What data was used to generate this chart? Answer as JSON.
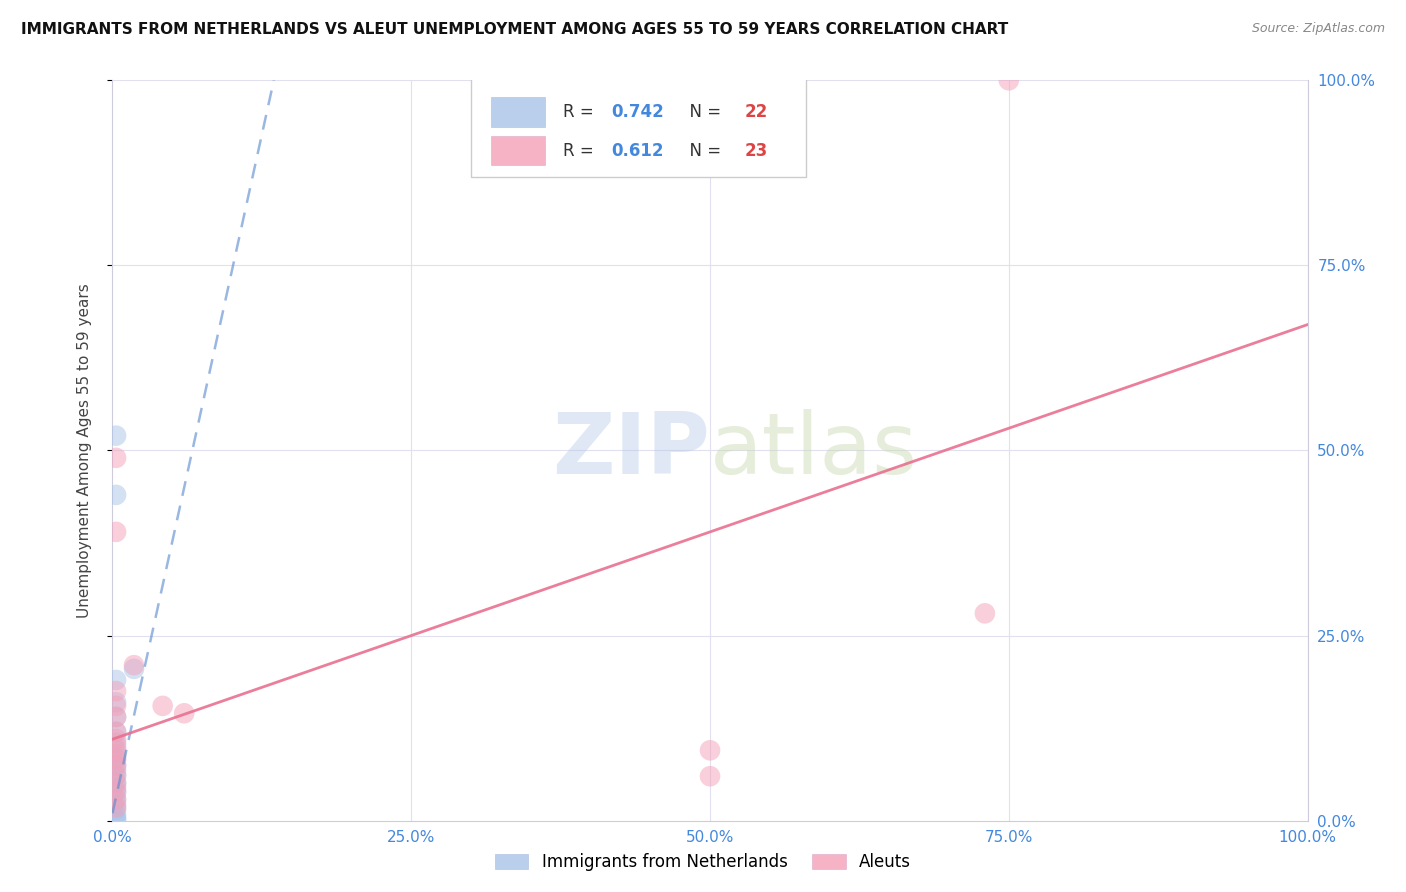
{
  "title": "IMMIGRANTS FROM NETHERLANDS VS ALEUT UNEMPLOYMENT AMONG AGES 55 TO 59 YEARS CORRELATION CHART",
  "source": "Source: ZipAtlas.com",
  "ylabel": "Unemployment Among Ages 55 to 59 years",
  "xlim": [
    0,
    1.0
  ],
  "ylim": [
    0,
    1.0
  ],
  "xticks": [
    0.0,
    0.25,
    0.5,
    0.75,
    1.0
  ],
  "yticks": [
    0.0,
    0.25,
    0.5,
    0.75,
    1.0
  ],
  "xticklabels": [
    "0.0%",
    "25.0%",
    "50.0%",
    "75.0%",
    "100.0%"
  ],
  "right_yticklabels": [
    "0.0%",
    "25.0%",
    "50.0%",
    "75.0%",
    "100.0%"
  ],
  "watermark_zip": "ZIP",
  "watermark_atlas": "atlas",
  "blue_color": "#a8c4e8",
  "pink_color": "#f4a0b8",
  "blue_line_color": "#5588cc",
  "pink_line_color": "#e87090",
  "grid_color": "#e0e0ee",
  "blue_scatter": [
    [
      0.003,
      0.52
    ],
    [
      0.003,
      0.19
    ],
    [
      0.003,
      0.16
    ],
    [
      0.003,
      0.14
    ],
    [
      0.003,
      0.12
    ],
    [
      0.003,
      0.105
    ],
    [
      0.003,
      0.095
    ],
    [
      0.003,
      0.085
    ],
    [
      0.003,
      0.075
    ],
    [
      0.003,
      0.068
    ],
    [
      0.003,
      0.06
    ],
    [
      0.003,
      0.052
    ],
    [
      0.003,
      0.045
    ],
    [
      0.003,
      0.038
    ],
    [
      0.003,
      0.03
    ],
    [
      0.003,
      0.022
    ],
    [
      0.003,
      0.015
    ],
    [
      0.003,
      0.008
    ],
    [
      0.003,
      0.003
    ],
    [
      0.003,
      0.001
    ],
    [
      0.018,
      0.205
    ],
    [
      0.003,
      0.44
    ]
  ],
  "pink_scatter": [
    [
      0.003,
      0.49
    ],
    [
      0.003,
      0.39
    ],
    [
      0.003,
      0.175
    ],
    [
      0.003,
      0.155
    ],
    [
      0.003,
      0.14
    ],
    [
      0.003,
      0.12
    ],
    [
      0.003,
      0.11
    ],
    [
      0.003,
      0.1
    ],
    [
      0.003,
      0.09
    ],
    [
      0.003,
      0.082
    ],
    [
      0.003,
      0.074
    ],
    [
      0.003,
      0.062
    ],
    [
      0.003,
      0.05
    ],
    [
      0.003,
      0.04
    ],
    [
      0.003,
      0.028
    ],
    [
      0.003,
      0.018
    ],
    [
      0.018,
      0.21
    ],
    [
      0.042,
      0.155
    ],
    [
      0.06,
      0.145
    ],
    [
      0.5,
      0.095
    ],
    [
      0.5,
      0.06
    ],
    [
      0.73,
      0.28
    ],
    [
      0.75,
      1.0
    ]
  ],
  "blue_line_x": [
    0.0,
    0.135
  ],
  "blue_line_y": [
    0.01,
    1.0
  ],
  "pink_line_x": [
    0.0,
    1.0
  ],
  "pink_line_y": [
    0.11,
    0.67
  ],
  "dot_size": 220,
  "dot_alpha": 0.5,
  "legend_r_color": "#4488dd",
  "legend_n_color": "#dd4444",
  "title_color": "#111111",
  "source_color": "#888888"
}
